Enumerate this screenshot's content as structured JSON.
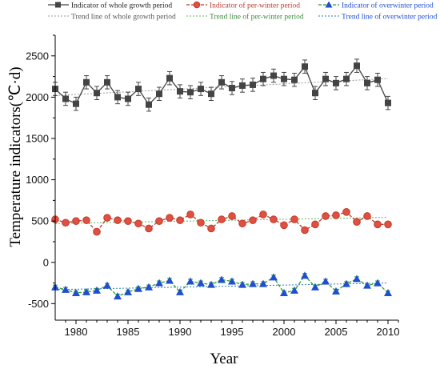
{
  "chart_data": {
    "type": "line",
    "xlabel": "Year",
    "ylabel": "Temperature indicators(℃·d)",
    "xlim": [
      1978,
      2011
    ],
    "ylim": [
      -700,
      2750
    ],
    "x_ticks": [
      1980,
      1985,
      1990,
      1995,
      2000,
      2005,
      2010
    ],
    "y_ticks": [
      -500,
      0,
      500,
      1000,
      1500,
      2000,
      2500
    ],
    "grid": false,
    "legend_position": "top",
    "x": [
      1978,
      1979,
      1980,
      1981,
      1982,
      1983,
      1984,
      1985,
      1986,
      1987,
      1988,
      1989,
      1990,
      1991,
      1992,
      1993,
      1994,
      1995,
      1996,
      1997,
      1998,
      1999,
      2000,
      2001,
      2002,
      2003,
      2004,
      2005,
      2006,
      2007,
      2008,
      2009,
      2010
    ],
    "series": [
      {
        "name": "Indicator of whole growth period",
        "color": "#444444",
        "marker": "square",
        "values": [
          2100,
          1980,
          1920,
          2180,
          2050,
          2180,
          2000,
          1980,
          2100,
          1910,
          2040,
          2230,
          2070,
          2060,
          2100,
          2040,
          2180,
          2110,
          2140,
          2150,
          2220,
          2260,
          2220,
          2210,
          2370,
          2050,
          2220,
          2170,
          2220,
          2380,
          2170,
          2210,
          1930
        ],
        "error": 80
      },
      {
        "name": "Indicator of per-winter period",
        "color": "#c0392b",
        "fill": "#e05040",
        "marker": "circle",
        "values": [
          520,
          480,
          500,
          510,
          370,
          540,
          510,
          500,
          470,
          410,
          500,
          540,
          510,
          580,
          480,
          410,
          520,
          560,
          470,
          510,
          580,
          520,
          450,
          520,
          390,
          460,
          560,
          570,
          610,
          490,
          560,
          460,
          460
        ],
        "error": 30
      },
      {
        "name": "Indicator of overwinter period",
        "color": "#2aa02a",
        "fill": "#1f4fd0",
        "marker": "triangle",
        "values": [
          -300,
          -330,
          -370,
          -360,
          -340,
          -280,
          -410,
          -360,
          -320,
          -300,
          -250,
          -220,
          -360,
          -230,
          -250,
          -270,
          -210,
          -230,
          -270,
          -260,
          -260,
          -180,
          -370,
          -340,
          -160,
          -300,
          -230,
          -350,
          -260,
          -200,
          -280,
          -250,
          -370
        ],
        "error": 25
      }
    ],
    "trend_lines": [
      {
        "name": "Trend line of whole growth period",
        "color": "#9a9a9a",
        "start": [
          1978,
          2020
        ],
        "end": [
          2010,
          2225
        ]
      },
      {
        "name": "Trend line of per-winter period",
        "color": "#5cb85c",
        "start": [
          1978,
          470
        ],
        "end": [
          2010,
          545
        ]
      },
      {
        "name": "Trend line of overwinter period",
        "color": "#2a78b8",
        "start": [
          1978,
          -330
        ],
        "end": [
          2010,
          -250
        ]
      }
    ]
  }
}
